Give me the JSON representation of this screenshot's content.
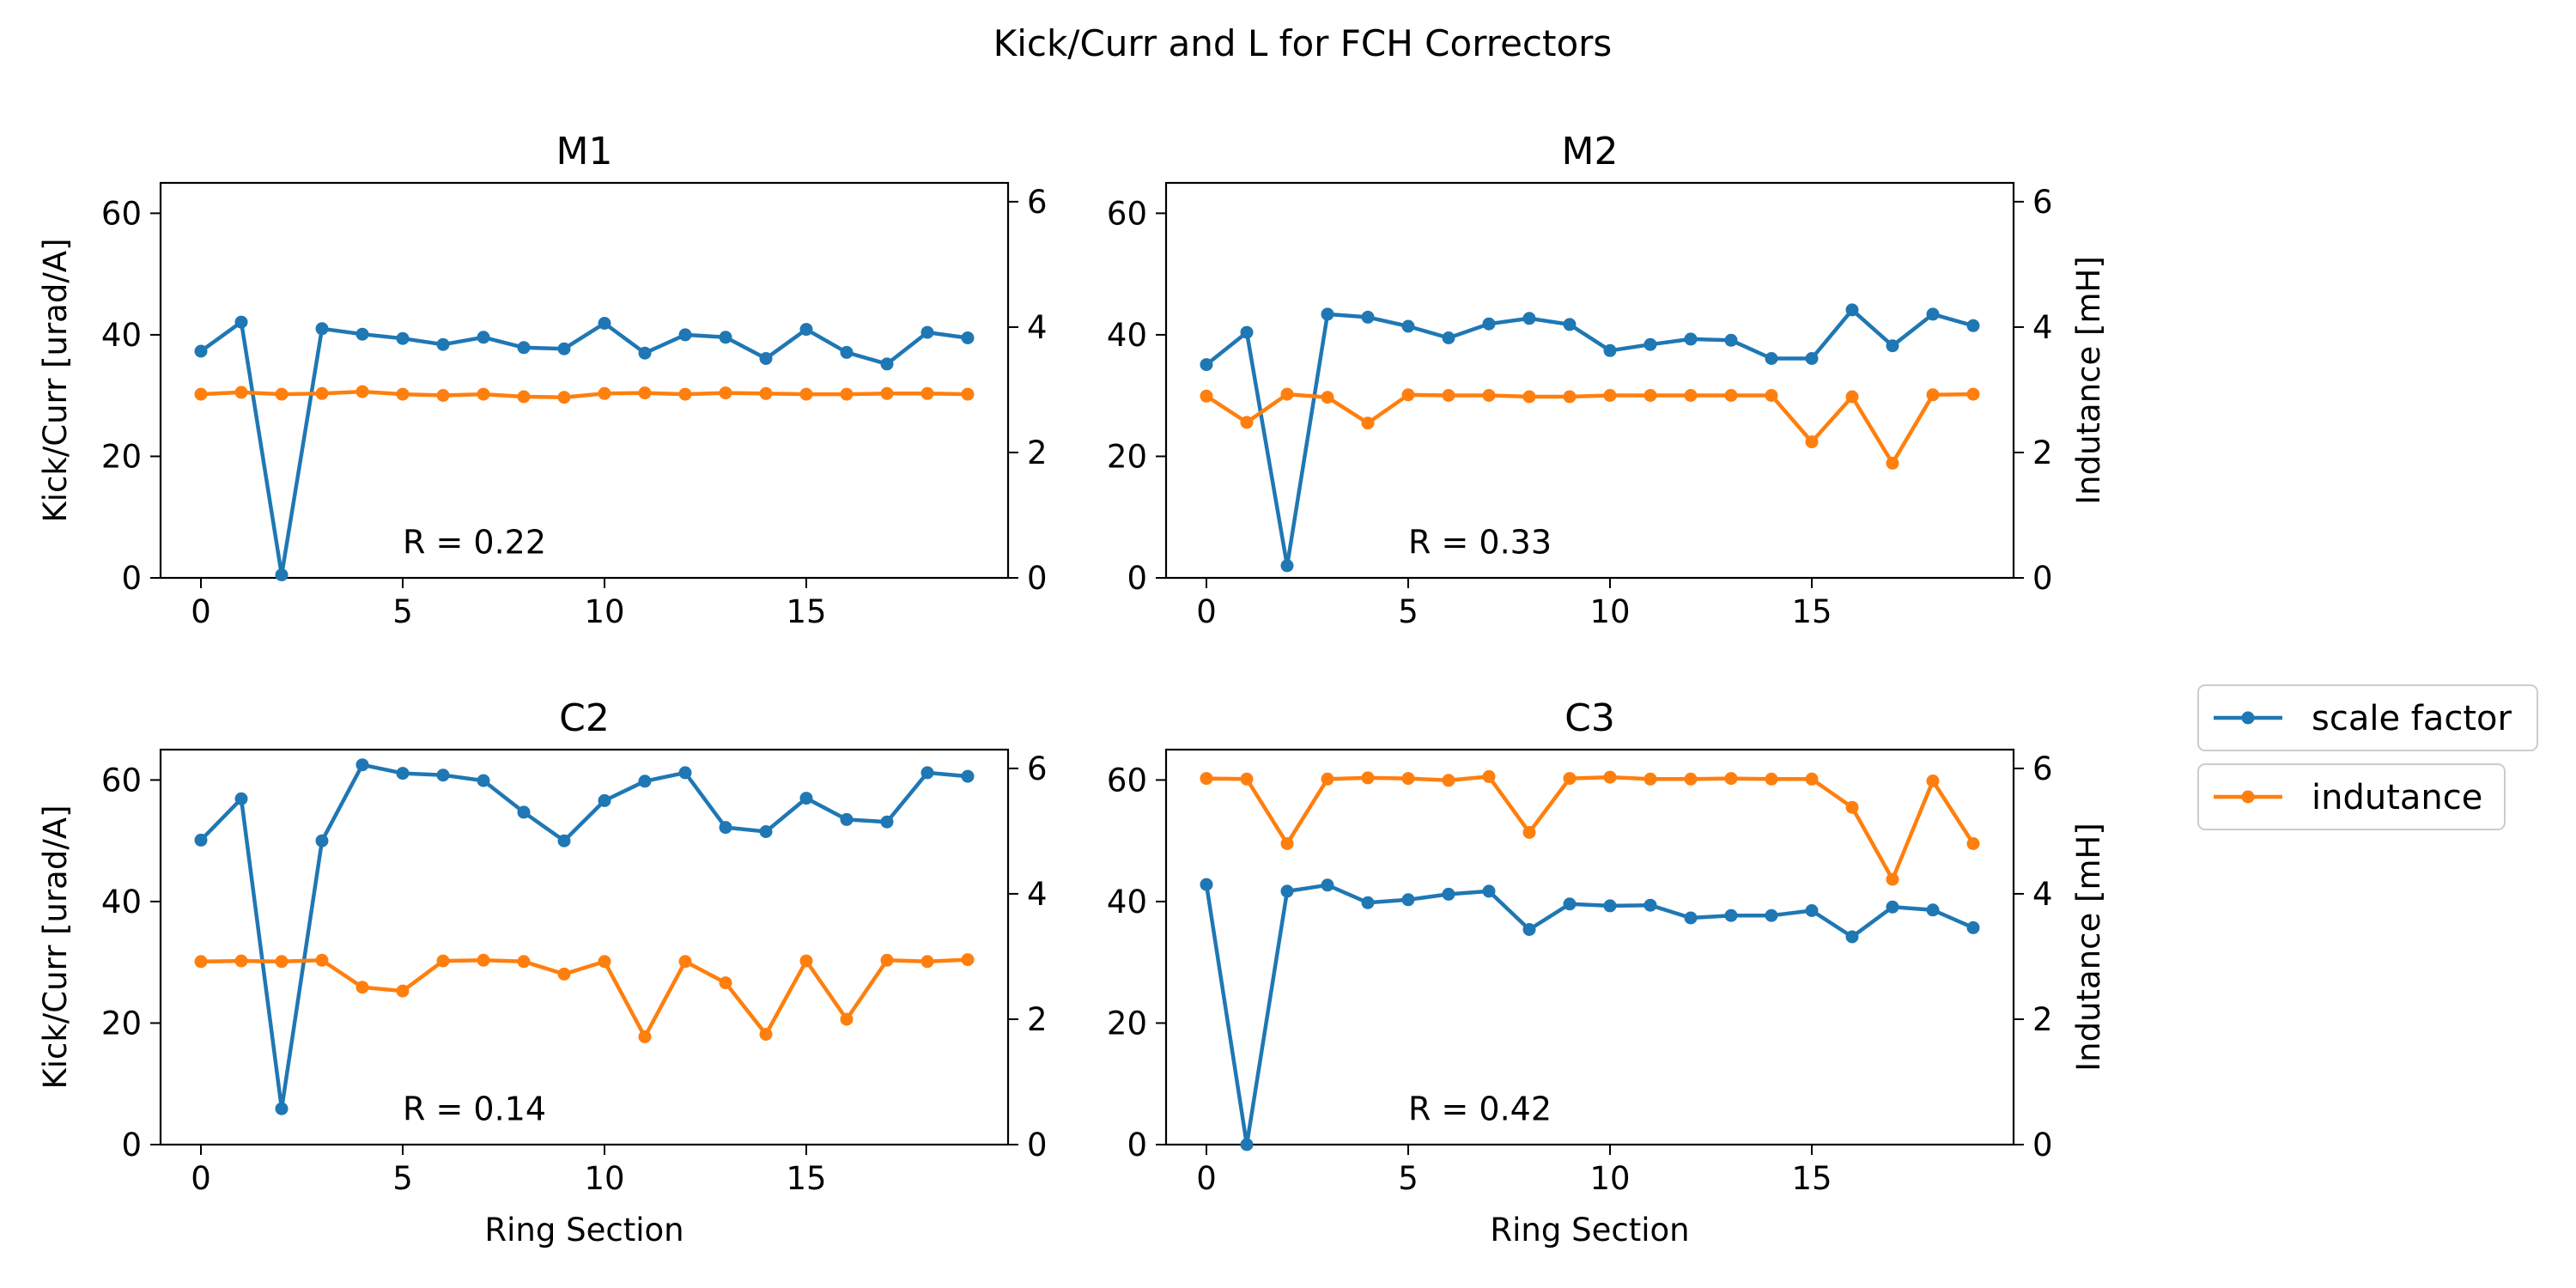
{
  "chart_data": {
    "title": "Kick/Curr and L for FCH Correctors",
    "colors": {
      "scale_factor": "#1f77b4",
      "indutance": "#ff7f0e"
    },
    "legend": {
      "placement": "right",
      "entries": [
        {
          "key": "scale_factor",
          "label": "scale factor"
        },
        {
          "key": "indutance",
          "label": "indutance"
        }
      ]
    },
    "subplots": [
      {
        "type": "line",
        "title": "M1",
        "xlabel": "",
        "ylabel_left": "Kick/Curr [urad/A]",
        "ylabel_right": "",
        "xlim": [
          -1,
          20
        ],
        "ylim_left": [
          0,
          65
        ],
        "ylim_right": [
          0,
          6.3
        ],
        "xticks": [
          0,
          5,
          10,
          15
        ],
        "yticks_left": [
          0,
          20,
          40,
          60
        ],
        "yticks_right": [
          0,
          2,
          4,
          6
        ],
        "annotation": {
          "text": "R = 0.22",
          "x": 5,
          "y": 4
        },
        "x": [
          0,
          1,
          2,
          3,
          4,
          5,
          6,
          7,
          8,
          9,
          10,
          11,
          12,
          13,
          14,
          15,
          16,
          17,
          18,
          19
        ],
        "series": [
          {
            "key": "scale_factor",
            "axis": "left",
            "values": [
              37.3,
              42.1,
              0.5,
              41.0,
              40.1,
              39.4,
              38.4,
              39.6,
              37.9,
              37.7,
              41.9,
              37.0,
              40.0,
              39.6,
              36.1,
              40.9,
              37.1,
              35.2,
              40.4,
              39.5
            ]
          },
          {
            "key": "indutance",
            "axis": "right",
            "values": [
              2.93,
              2.96,
              2.93,
              2.94,
              2.97,
              2.93,
              2.91,
              2.93,
              2.89,
              2.88,
              2.94,
              2.95,
              2.93,
              2.95,
              2.94,
              2.93,
              2.93,
              2.94,
              2.94,
              2.93
            ]
          }
        ]
      },
      {
        "type": "line",
        "title": "M2",
        "xlabel": "",
        "ylabel_left": "",
        "ylabel_right": "Indutance [mH]",
        "xlim": [
          -1,
          20
        ],
        "ylim_left": [
          0,
          65
        ],
        "ylim_right": [
          0,
          6.3
        ],
        "xticks": [
          0,
          5,
          10,
          15
        ],
        "yticks_left": [
          0,
          20,
          40,
          60
        ],
        "yticks_right": [
          0,
          2,
          4,
          6
        ],
        "annotation": {
          "text": "R = 0.33",
          "x": 5,
          "y": 4
        },
        "x": [
          0,
          1,
          2,
          3,
          4,
          5,
          6,
          7,
          8,
          9,
          10,
          11,
          12,
          13,
          14,
          15,
          16,
          17,
          18,
          19
        ],
        "series": [
          {
            "key": "scale_factor",
            "axis": "left",
            "values": [
              35.1,
              40.4,
              2.0,
              43.4,
              42.9,
              41.4,
              39.5,
              41.8,
              42.7,
              41.7,
              37.4,
              38.4,
              39.3,
              39.1,
              36.1,
              36.1,
              44.1,
              38.2,
              43.4,
              41.5
            ]
          },
          {
            "key": "indutance",
            "axis": "right",
            "values": [
              2.9,
              2.48,
              2.93,
              2.88,
              2.47,
              2.92,
              2.91,
              2.91,
              2.89,
              2.89,
              2.91,
              2.91,
              2.91,
              2.91,
              2.91,
              2.17,
              2.89,
              1.83,
              2.92,
              2.93
            ]
          }
        ]
      },
      {
        "type": "line",
        "title": "C2",
        "xlabel": "Ring Section",
        "ylabel_left": "Kick/Curr [urad/A]",
        "ylabel_right": "",
        "xlim": [
          -1,
          20
        ],
        "ylim_left": [
          0,
          65
        ],
        "ylim_right": [
          0,
          6.3
        ],
        "xticks": [
          0,
          5,
          10,
          15
        ],
        "yticks_left": [
          0,
          20,
          40,
          60
        ],
        "yticks_right": [
          0,
          2,
          4,
          6
        ],
        "annotation": {
          "text": "R = 0.14",
          "x": 5,
          "y": 4
        },
        "x": [
          0,
          1,
          2,
          3,
          4,
          5,
          6,
          7,
          8,
          9,
          10,
          11,
          12,
          13,
          14,
          15,
          16,
          17,
          18,
          19
        ],
        "series": [
          {
            "key": "scale_factor",
            "axis": "left",
            "values": [
              50.1,
              56.9,
              5.9,
              50.0,
              62.5,
              61.1,
              60.8,
              59.9,
              54.7,
              50.0,
              56.6,
              59.8,
              61.2,
              52.2,
              51.5,
              57.0,
              53.5,
              53.1,
              61.2,
              60.6
            ]
          },
          {
            "key": "indutance",
            "axis": "right",
            "values": [
              2.92,
              2.93,
              2.92,
              2.94,
              2.51,
              2.45,
              2.93,
              2.94,
              2.92,
              2.72,
              2.92,
              1.72,
              2.92,
              2.58,
              1.76,
              2.93,
              2.0,
              2.94,
              2.92,
              2.95
            ]
          }
        ]
      },
      {
        "type": "line",
        "title": "C3",
        "xlabel": "Ring Section",
        "ylabel_left": "",
        "ylabel_right": "Indutance [mH]",
        "xlim": [
          -1,
          20
        ],
        "ylim_left": [
          0,
          65
        ],
        "ylim_right": [
          0,
          6.3
        ],
        "xticks": [
          0,
          5,
          10,
          15
        ],
        "yticks_left": [
          0,
          20,
          40,
          60
        ],
        "yticks_right": [
          0,
          2,
          4,
          6
        ],
        "annotation": {
          "text": "R = 0.42",
          "x": 5,
          "y": 4
        },
        "x": [
          0,
          1,
          2,
          3,
          4,
          5,
          6,
          7,
          8,
          9,
          10,
          11,
          12,
          13,
          14,
          15,
          16,
          17,
          18,
          19
        ],
        "series": [
          {
            "key": "scale_factor",
            "axis": "left",
            "values": [
              42.8,
              0.0,
              41.7,
              42.7,
              39.8,
              40.3,
              41.2,
              41.7,
              35.4,
              39.6,
              39.3,
              39.4,
              37.3,
              37.7,
              37.7,
              38.5,
              34.2,
              39.1,
              38.6,
              35.7
            ]
          },
          {
            "key": "indutance",
            "axis": "right",
            "values": [
              5.84,
              5.83,
              4.8,
              5.83,
              5.85,
              5.84,
              5.81,
              5.87,
              4.98,
              5.84,
              5.86,
              5.83,
              5.83,
              5.84,
              5.83,
              5.83,
              5.38,
              4.23,
              5.8,
              4.8
            ]
          }
        ]
      }
    ]
  }
}
